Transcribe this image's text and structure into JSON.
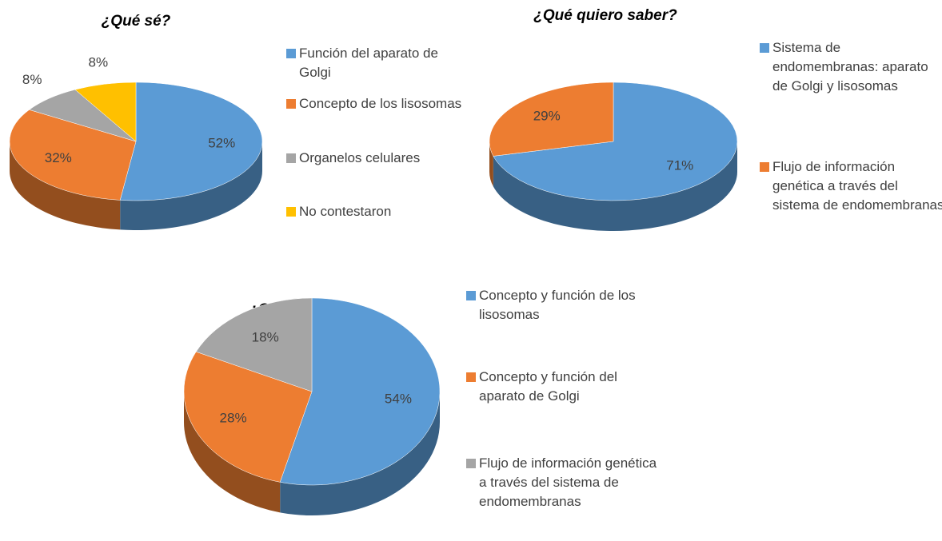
{
  "chart_data": [
    {
      "type": "pie",
      "title": "¿Qué sé?",
      "categories": [
        "Función del aparato de Golgi",
        "Concepto de los lisosomas",
        "Organelos celulares",
        "No contestaron"
      ],
      "values": [
        52,
        32,
        8,
        8
      ],
      "value_labels": [
        "52%",
        "32%",
        "8%",
        "8%"
      ],
      "colors": [
        "#5b9bd5",
        "#ed7d31",
        "#a5a5a5",
        "#ffc000"
      ]
    },
    {
      "type": "pie",
      "title": "¿Qué quiero saber?",
      "categories": [
        "Sistema de endomembranas: aparato de Golgi y lisosomas",
        "Flujo de información genética a través del sistema de endomembranas"
      ],
      "values": [
        71,
        29
      ],
      "value_labels": [
        "71%",
        "29%"
      ],
      "colors": [
        "#5b9bd5",
        "#ed7d31"
      ]
    },
    {
      "type": "pie",
      "title": "¿Qué aprendí?",
      "categories": [
        "Concepto y función de los lisosomas",
        "Concepto y función del aparato de Golgi",
        "Flujo de información genética a través del sistema de endomembranas"
      ],
      "values": [
        54,
        28,
        18
      ],
      "value_labels": [
        "54%",
        "28%",
        "18%"
      ],
      "colors": [
        "#5b9bd5",
        "#ed7d31",
        "#a5a5a5"
      ]
    }
  ]
}
